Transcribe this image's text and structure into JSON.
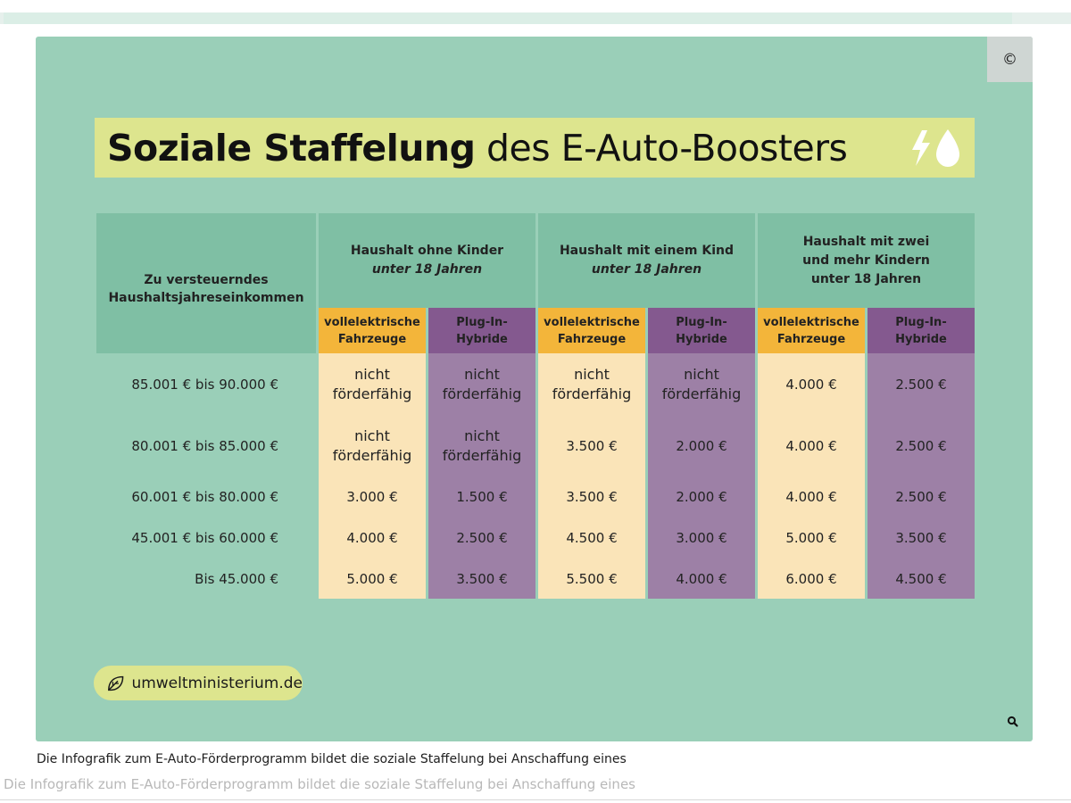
{
  "progress": {
    "fraction": 0.945
  },
  "figure": {
    "copyright_symbol": "©",
    "title_bold": "Soziale Staffelung",
    "title_rest": " des E-Auto-Boosters",
    "title_icons": [
      "lightning-icon",
      "drop-icon"
    ],
    "table": {
      "income_header": "Zu versteuerndes Haushaltsjahreseinkommen",
      "groups": [
        {
          "line1": "Haushalt ohne Kinder",
          "line2": "unter 18 Jahren",
          "line2_italic": true
        },
        {
          "line1": "Haushalt mit einem Kind",
          "line2": "unter 18 Jahren",
          "line2_italic": true
        },
        {
          "line1": "Haushalt mit zwei",
          "line1b": "und mehr Kindern",
          "line2": "unter 18 Jahren",
          "line2_italic": false
        }
      ],
      "sub_ev": [
        "vollelektrische",
        "Fahrzeuge"
      ],
      "sub_ph": [
        "Plug-In-",
        "Hybride"
      ],
      "rows": [
        {
          "income": "85.001 € bis 90.000 €",
          "values": [
            "nicht förderfähig",
            "nicht förderfähig",
            "nicht förderfähig",
            "nicht förderfähig",
            "4.000 €",
            "2.500 €"
          ]
        },
        {
          "income": "80.001 € bis 85.000 €",
          "values": [
            "nicht förderfähig",
            "nicht förderfähig",
            "3.500 €",
            "2.000 €",
            "4.000 €",
            "2.500 €"
          ]
        },
        {
          "income": "60.001 € bis 80.000 €",
          "values": [
            "3.000 €",
            "1.500 €",
            "3.500 €",
            "2.000 €",
            "4.000 €",
            "2.500 €"
          ]
        },
        {
          "income": "45.001 € bis 60.000 €",
          "values": [
            "4.000 €",
            "2.500 €",
            "4.500 €",
            "3.000 €",
            "5.000 €",
            "3.500 €"
          ]
        },
        {
          "income": "Bis  45.000 €",
          "values": [
            "5.000 €",
            "3.500 €",
            "5.500 €",
            "4.000 €",
            "6.000 €",
            "4.500 €"
          ]
        }
      ]
    },
    "site_badge": {
      "label": "umweltministerium.de",
      "icon": "leaf-icon"
    },
    "zoom_icon": "magnifier-icon"
  },
  "caption": {
    "line1": "Die Infografik zum E-Auto-Förderprogramm bildet die soziale Staffelung bei Anschaffung eines",
    "line2": "Die Infografik zum E-Auto-Förderprogramm bildet die soziale Staffelung bei Anschaffung eines"
  },
  "colors": {
    "background": "#9acfb8",
    "header": "#7fbfa4",
    "title_bar": "#dde58e",
    "ev_header": "#f3b53a",
    "ev_cell": "#fae4b8",
    "phev_header": "#84598f",
    "phev_cell": "#9d80a6"
  }
}
